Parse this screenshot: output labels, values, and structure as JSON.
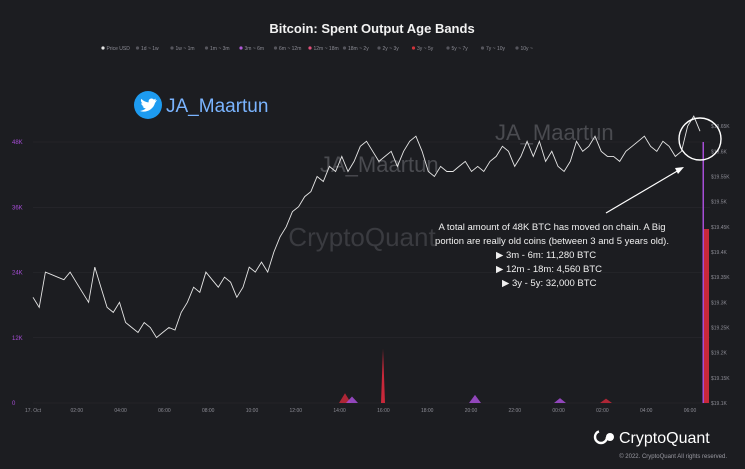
{
  "chart_data": {
    "type": "line",
    "title": "Bitcoin: Spent Output Age Bands",
    "legend": [
      {
        "name": "Price USD",
        "color": "#e6e6e6"
      },
      {
        "name": "1d ~ 1w",
        "color": "#55555c"
      },
      {
        "name": "1w ~ 1m",
        "color": "#55555c"
      },
      {
        "name": "1m ~ 3m",
        "color": "#55555c"
      },
      {
        "name": "3m ~ 6m",
        "color": "#b05ad8"
      },
      {
        "name": "6m ~ 12m",
        "color": "#55555c"
      },
      {
        "name": "12m ~ 18m",
        "color": "#e0507a"
      },
      {
        "name": "18m ~ 2y",
        "color": "#55555c"
      },
      {
        "name": "2y ~ 3y",
        "color": "#55555c"
      },
      {
        "name": "3y ~ 5y",
        "color": "#d0333a"
      },
      {
        "name": "5y ~ 7y",
        "color": "#55555c"
      },
      {
        "name": "7y ~ 10y",
        "color": "#55555c"
      },
      {
        "name": "10y ~",
        "color": "#55555c"
      }
    ],
    "x_ticks": [
      "17. Oct",
      "02:00",
      "04:00",
      "06:00",
      "08:00",
      "10:00",
      "12:00",
      "14:00",
      "16:00",
      "18:00",
      "20:00",
      "22:00",
      "00:00",
      "02:00",
      "04:00",
      "06:00"
    ],
    "y_left_ticks": [
      "0",
      "12K",
      "24K",
      "36K",
      "48K"
    ],
    "y_left_range": [
      0,
      48000
    ],
    "y_right_ticks": [
      "$19.65K",
      "$19.6K",
      "$19.55K",
      "$19.5K",
      "$19.45K",
      "$19.4K",
      "$19.35K",
      "$19.3K",
      "$19.25K",
      "$19.2K",
      "$19.15K",
      "$19.1K"
    ],
    "y_right_range": [
      19100,
      19700
    ],
    "price_series": {
      "name": "Price USD",
      "values": [
        19310,
        19290,
        19360,
        19355,
        19350,
        19345,
        19360,
        19340,
        19320,
        19300,
        19370,
        19330,
        19290,
        19280,
        19300,
        19260,
        19250,
        19240,
        19260,
        19250,
        19230,
        19240,
        19250,
        19245,
        19280,
        19300,
        19330,
        19320,
        19360,
        19345,
        19330,
        19350,
        19340,
        19310,
        19330,
        19370,
        19360,
        19380,
        19360,
        19400,
        19430,
        19450,
        19480,
        19490,
        19510,
        19520,
        19550,
        19540,
        19570,
        19560,
        19590,
        19560,
        19580,
        19610,
        19620,
        19600,
        19580,
        19590,
        19600,
        19570,
        19600,
        19620,
        19630,
        19600,
        19560,
        19550,
        19570,
        19560,
        19560,
        19570,
        19580,
        19560,
        19570,
        19560,
        19580,
        19590,
        19610,
        19600,
        19570,
        19590,
        19620,
        19590,
        19620,
        19580,
        19600,
        19570,
        19560,
        19580,
        19620,
        19600,
        19610,
        19630,
        19600,
        19590,
        19590,
        19580,
        19600,
        19610,
        19620,
        19630,
        19610,
        19600,
        19620,
        19610,
        19590,
        19600,
        19650,
        19670,
        19640
      ]
    },
    "volume_series": [
      {
        "name": "3m ~ 6m",
        "spike": 11280
      },
      {
        "name": "12m ~ 18m",
        "spike": 4560
      },
      {
        "name": "3y ~ 5y",
        "spike": 32000,
        "total_near": 48000,
        "mid_spike": 10000
      }
    ]
  },
  "watermarks": {
    "center": "CryptoQuant",
    "name_left": "JA_Maartun",
    "name_right": "JA_Maartun"
  },
  "twitter_handle": "JA_Maartun",
  "annotation_lines": [
    "A total amount of 48K BTC has moved on chain. A Big",
    "portion are really old coins (between 3 and 5 years old).",
    "▶ 3m - 6m: 11,280 BTC",
    "▶ 12m - 18m: 4,560 BTC",
    "▶ 3y - 5y: 32,000 BTC"
  ],
  "brand": "CryptoQuant",
  "copyright": "© 2022. CryptoQuant All rights reserved.",
  "colors": {
    "background": "#1c1d21",
    "price_line": "#e6e6e6",
    "volume_red": "#c8283a",
    "volume_purple": "#a64dd6",
    "twitter_blue": "#1d9bf0"
  }
}
